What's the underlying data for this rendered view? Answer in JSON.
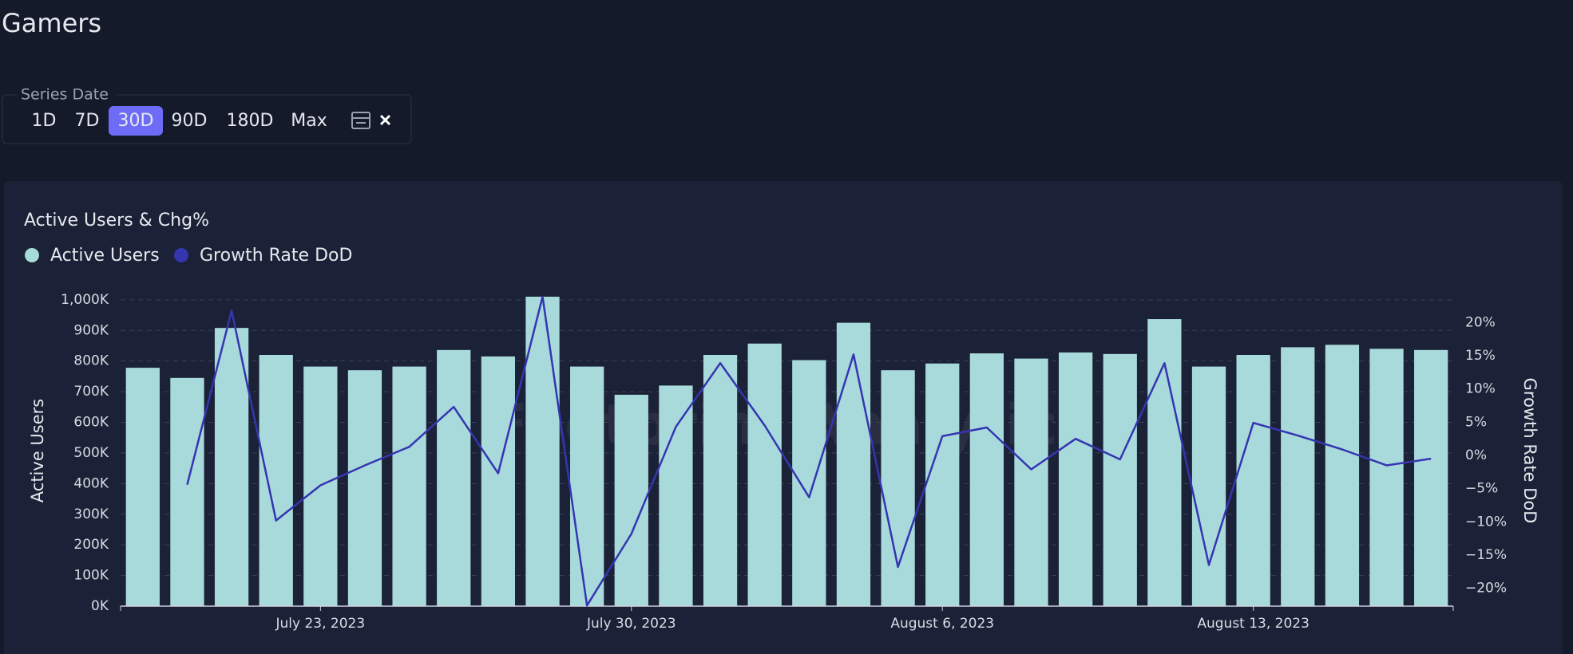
{
  "page": {
    "title": "Gamers",
    "filter": {
      "label": "Series Date",
      "options": [
        "1D",
        "7D",
        "30D",
        "90D",
        "180D",
        "Max"
      ],
      "selected": "30D"
    },
    "watermark": "Footprint Analytics"
  },
  "chart_data": {
    "type": "bar-line",
    "title": "Active Users & Chg%",
    "categories": [
      null,
      null,
      null,
      null,
      "July 23, 2023",
      null,
      null,
      null,
      null,
      null,
      null,
      "July 30, 2023",
      null,
      null,
      null,
      null,
      null,
      null,
      "August 6, 2023",
      null,
      null,
      null,
      null,
      null,
      null,
      "August 13, 2023",
      null,
      null,
      null,
      null
    ],
    "series": [
      {
        "name": "Active Users",
        "color": "#a8dadc",
        "type": "bar",
        "values": [
          778000,
          745000,
          908000,
          820000,
          782000,
          770000,
          782000,
          836000,
          815000,
          1010000,
          782000,
          690000,
          720000,
          820000,
          857000,
          803000,
          925000,
          770000,
          792000,
          825000,
          808000,
          828000,
          823000,
          937000,
          782000,
          820000,
          845000,
          853000,
          840000,
          836000
        ]
      },
      {
        "name": "Growth Rate DoD",
        "color": "#3535b0",
        "type": "line",
        "axis": "y2",
        "values": [
          null,
          -4.4,
          21.8,
          -9.8,
          -4.5,
          -1.5,
          1.3,
          7.3,
          -2.7,
          23.9,
          -22.6,
          -11.8,
          4.3,
          13.9,
          4.5,
          -6.3,
          15.2,
          -16.8,
          2.9,
          4.2,
          -2.1,
          2.5,
          -0.6,
          13.9,
          -16.5,
          4.9,
          3.0,
          0.9,
          -1.5,
          -0.5
        ]
      }
    ],
    "ylabel": "Active Users",
    "y2label": "Growth Rate DoD",
    "ylim": [
      0,
      1010000
    ],
    "yticks": [
      {
        "value": 0,
        "label": "0K"
      },
      {
        "value": 100000,
        "label": "100K"
      },
      {
        "value": 200000,
        "label": "200K"
      },
      {
        "value": 300000,
        "label": "300K"
      },
      {
        "value": 400000,
        "label": "400K"
      },
      {
        "value": 500000,
        "label": "500K"
      },
      {
        "value": 600000,
        "label": "600K"
      },
      {
        "value": 700000,
        "label": "700K"
      },
      {
        "value": 800000,
        "label": "800K"
      },
      {
        "value": 900000,
        "label": "900K"
      },
      {
        "value": 1000000,
        "label": "1,000K"
      }
    ],
    "y2lim": [
      -22.7,
      23.9
    ],
    "y2ticks": [
      {
        "value": -20,
        "label": "−20%"
      },
      {
        "value": -15,
        "label": "−15%"
      },
      {
        "value": -10,
        "label": "−10%"
      },
      {
        "value": -5,
        "label": "−5%"
      },
      {
        "value": 0,
        "label": "0%"
      },
      {
        "value": 5,
        "label": "5%"
      },
      {
        "value": 10,
        "label": "10%"
      },
      {
        "value": 15,
        "label": "15%"
      },
      {
        "value": 20,
        "label": "20%"
      }
    ],
    "grid": true
  }
}
